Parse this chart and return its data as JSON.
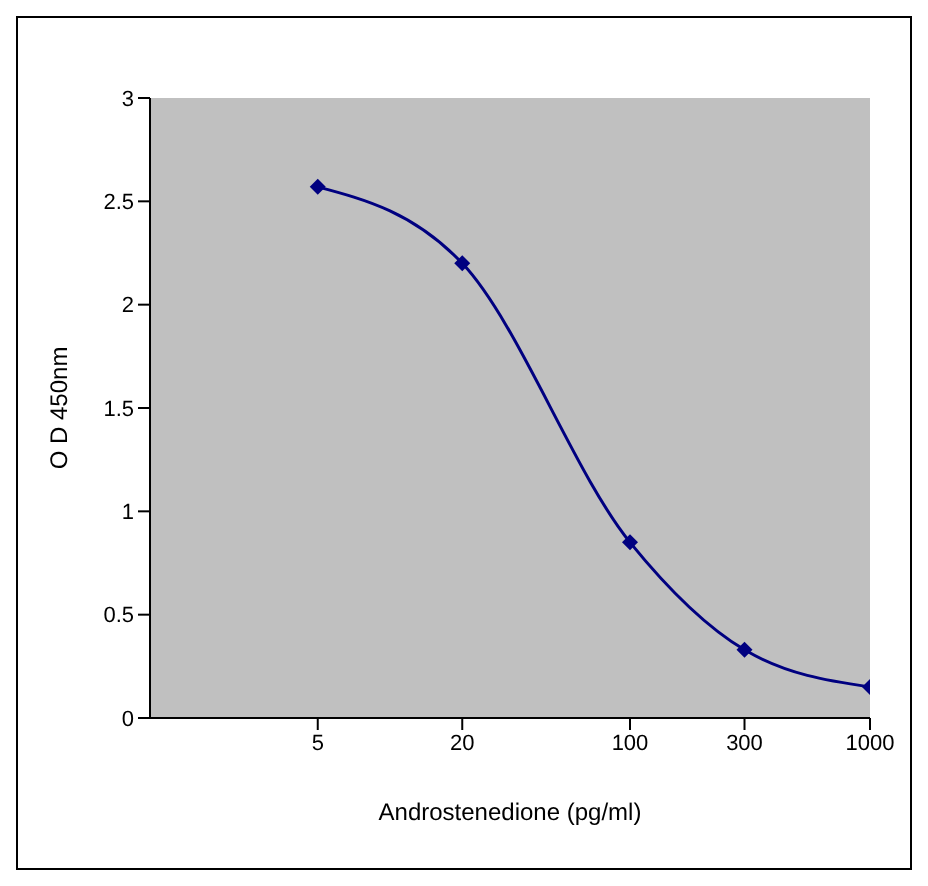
{
  "chart_data": {
    "type": "line",
    "xlabel": "Androstenedione (pg/ml)",
    "ylabel": "O D 450nm",
    "x": [
      5,
      20,
      100,
      300,
      1000
    ],
    "series": [
      {
        "color": "#000080",
        "values": [
          2.57,
          2.2,
          0.85,
          0.33,
          0.15
        ]
      }
    ],
    "log": "x",
    "xlim": [
      1,
      1000
    ],
    "xticks": [
      5,
      20,
      100,
      300,
      1000
    ],
    "ylim": [
      0,
      3
    ],
    "yticks": [
      0,
      0.5,
      1,
      1.5,
      2,
      2.5,
      3
    ],
    "grid": false,
    "legend": false,
    "marker": "diamond",
    "line_style": "solid"
  }
}
